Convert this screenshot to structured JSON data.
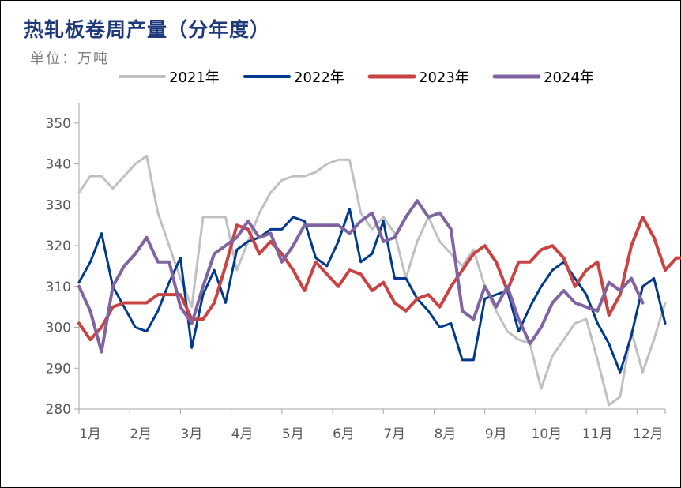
{
  "header": {
    "title": "热轧板卷周产量（分年度）",
    "unit": "单位：万吨"
  },
  "chart_data": {
    "type": "line",
    "title": "热轧板卷周产量（分年度）",
    "ylabel": "单位：万吨",
    "xlabel": "",
    "ylim": [
      280,
      355
    ],
    "yticks": [
      280,
      290,
      300,
      310,
      320,
      330,
      340,
      350
    ],
    "xlim": [
      1,
      53
    ],
    "month_labels": [
      "1月",
      "2月",
      "3月",
      "4月",
      "5月",
      "6月",
      "7月",
      "8月",
      "9月",
      "10月",
      "11月",
      "12月"
    ],
    "month_positions": [
      1,
      5.5,
      10,
      14.5,
      19,
      23.5,
      28,
      32.5,
      37,
      41.5,
      46,
      50.5
    ],
    "grid": false,
    "legend": "top",
    "series": [
      {
        "name": "2021年",
        "color": "#c0c0c0",
        "width": 3,
        "values": [
          333,
          337,
          337,
          334,
          337,
          340,
          342,
          328,
          320,
          312,
          305,
          327,
          327,
          327,
          314,
          321,
          328,
          333,
          336,
          337,
          337,
          338,
          340,
          341,
          341,
          328,
          324,
          327,
          323,
          312,
          321,
          327,
          321,
          318,
          315,
          319,
          310,
          304,
          299,
          297,
          296,
          285,
          293,
          297,
          301,
          302,
          292,
          281,
          283,
          299,
          289,
          297,
          306
        ]
      },
      {
        "name": "2022年",
        "color": "#003a8c",
        "width": 3,
        "values": [
          311,
          316,
          323,
          310,
          305,
          300,
          299,
          304,
          311,
          317,
          295,
          308,
          314,
          306,
          319,
          321,
          322,
          324,
          324,
          327,
          326,
          317,
          315,
          321,
          329,
          316,
          318,
          326,
          312,
          312,
          307,
          304,
          300,
          301,
          292,
          292,
          307,
          308,
          309,
          299,
          305,
          310,
          314,
          316,
          312,
          308,
          301,
          296,
          289,
          298,
          310,
          312,
          301
        ]
      },
      {
        "name": "2023年",
        "color": "#c94343",
        "width": 4,
        "values": [
          301,
          297,
          300,
          305,
          306,
          306,
          306,
          308,
          308,
          308,
          302,
          302,
          306,
          315,
          325,
          324,
          318,
          321,
          318,
          314,
          309,
          316,
          313,
          310,
          314,
          313,
          309,
          311,
          306,
          304,
          307,
          308,
          305,
          310,
          314,
          318,
          320,
          316,
          309,
          316,
          316,
          319,
          320,
          317,
          310,
          314,
          316,
          303,
          308,
          320,
          327,
          322,
          314,
          317,
          317
        ]
      },
      {
        "name": "2024年",
        "color": "#8064a2",
        "width": 4,
        "values": [
          310,
          304,
          294,
          310,
          315,
          318,
          322,
          316,
          316,
          305,
          301,
          310,
          318,
          320,
          322,
          326,
          322,
          323,
          316,
          320,
          325,
          325,
          325,
          325,
          323,
          326,
          328,
          321,
          322,
          327,
          331,
          327,
          328,
          324,
          304,
          302,
          310,
          305,
          310,
          302,
          296,
          300,
          306,
          309,
          306,
          305,
          304,
          311,
          309,
          312,
          306
        ]
      }
    ]
  }
}
